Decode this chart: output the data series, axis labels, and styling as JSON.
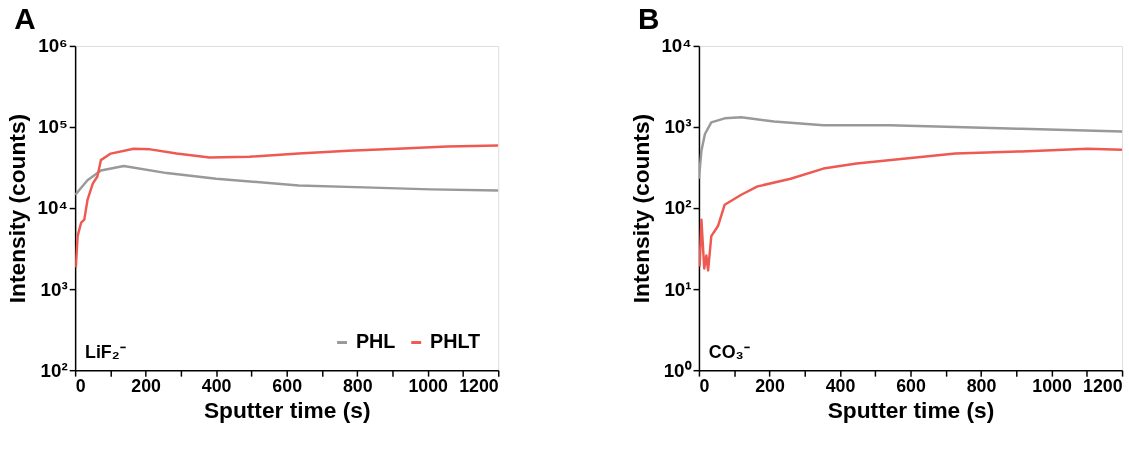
{
  "chart_data": [
    {
      "type": "line",
      "title": "A",
      "xlabel": "Sputter time (s)",
      "ylabel": "Intensity (counts)",
      "log": true,
      "grid": false,
      "legend": "bottom right",
      "annotations": [
        "LiF₂⁻"
      ],
      "xlim": [
        0,
        1200
      ],
      "xticks": [
        0,
        {
          "value": 100,
          "label": null
        },
        200,
        {
          "value": 300,
          "label": null
        },
        400,
        {
          "value": 500,
          "label": null
        },
        600,
        {
          "value": 700,
          "label": null
        },
        800,
        {
          "value": 900,
          "label": null
        },
        1000,
        {
          "value": 1100,
          "label": null
        },
        1200
      ],
      "ylim": [
        100,
        1000000
      ],
      "yticks": [
        {
          "value": 100,
          "label": "10²"
        },
        {
          "value": 1000,
          "label": "10³"
        },
        {
          "value": 10000,
          "label": "10⁴"
        },
        {
          "value": 100000,
          "label": "10⁵"
        },
        {
          "value": 1000000,
          "label": "10⁶"
        }
      ],
      "series": [
        {
          "name": "PHL",
          "color": "#999999",
          "x": [
            0,
            35,
            73,
            138,
            260,
            400,
            634,
            820,
            1008,
            1200
          ],
          "values": [
            14500,
            22000,
            29000,
            33000,
            27000,
            23000,
            19000,
            18000,
            17000,
            16500
          ]
        },
        {
          "name": "PHLT",
          "color": "#ee5a52",
          "x": [
            2,
            7,
            17,
            26,
            35,
            50,
            63,
            73,
            101,
            166,
            213,
            288,
            381,
            494,
            634,
            774,
            914,
            1055,
            1200
          ],
          "values": [
            1850,
            4500,
            6600,
            7200,
            12600,
            20000,
            24500,
            39000,
            47000,
            54000,
            53000,
            47000,
            42000,
            43000,
            47000,
            51000,
            54000,
            57500,
            59000
          ]
        }
      ]
    },
    {
      "type": "line",
      "title": "B",
      "xlabel": "Sputter time (s)",
      "ylabel": "Intensity (counts)",
      "log": true,
      "grid": false,
      "annotations": [
        "CO₃⁻"
      ],
      "xlim": [
        0,
        1200
      ],
      "xticks": [
        0,
        {
          "value": 100,
          "label": null
        },
        200,
        {
          "value": 300,
          "label": null
        },
        400,
        {
          "value": 500,
          "label": null
        },
        600,
        {
          "value": 700,
          "label": null
        },
        800,
        {
          "value": 900,
          "label": null
        },
        1000,
        {
          "value": 1100,
          "label": null
        },
        1200
      ],
      "ylim": [
        1,
        10000
      ],
      "yticks": [
        {
          "value": 1,
          "label": "10⁰"
        },
        {
          "value": 10,
          "label": "10¹"
        },
        {
          "value": 100,
          "label": "10²"
        },
        {
          "value": 1000,
          "label": "10³"
        },
        {
          "value": 10000,
          "label": "10⁴"
        }
      ],
      "series": [
        {
          "color": "#999999",
          "x": [
            0,
            7,
            17,
            35,
            73,
            120,
            213,
            353,
            540,
            727,
            914,
            1200
          ],
          "values": [
            230,
            510,
            820,
            1140,
            1280,
            1320,
            1170,
            1050,
            1050,
            1000,
            950,
            880
          ]
        },
        {
          "color": "#ee5a52",
          "x": [
            2,
            7,
            15,
            21,
            26,
            35,
            54,
            73,
            120,
            166,
            260,
            353,
            447,
            587,
            727,
            914,
            1102,
            1200
          ],
          "values": [
            19,
            72,
            18,
            26,
            17,
            45,
            60,
            110,
            146,
            185,
            230,
            307,
            355,
            408,
            470,
            500,
            540,
            525
          ]
        }
      ]
    }
  ]
}
